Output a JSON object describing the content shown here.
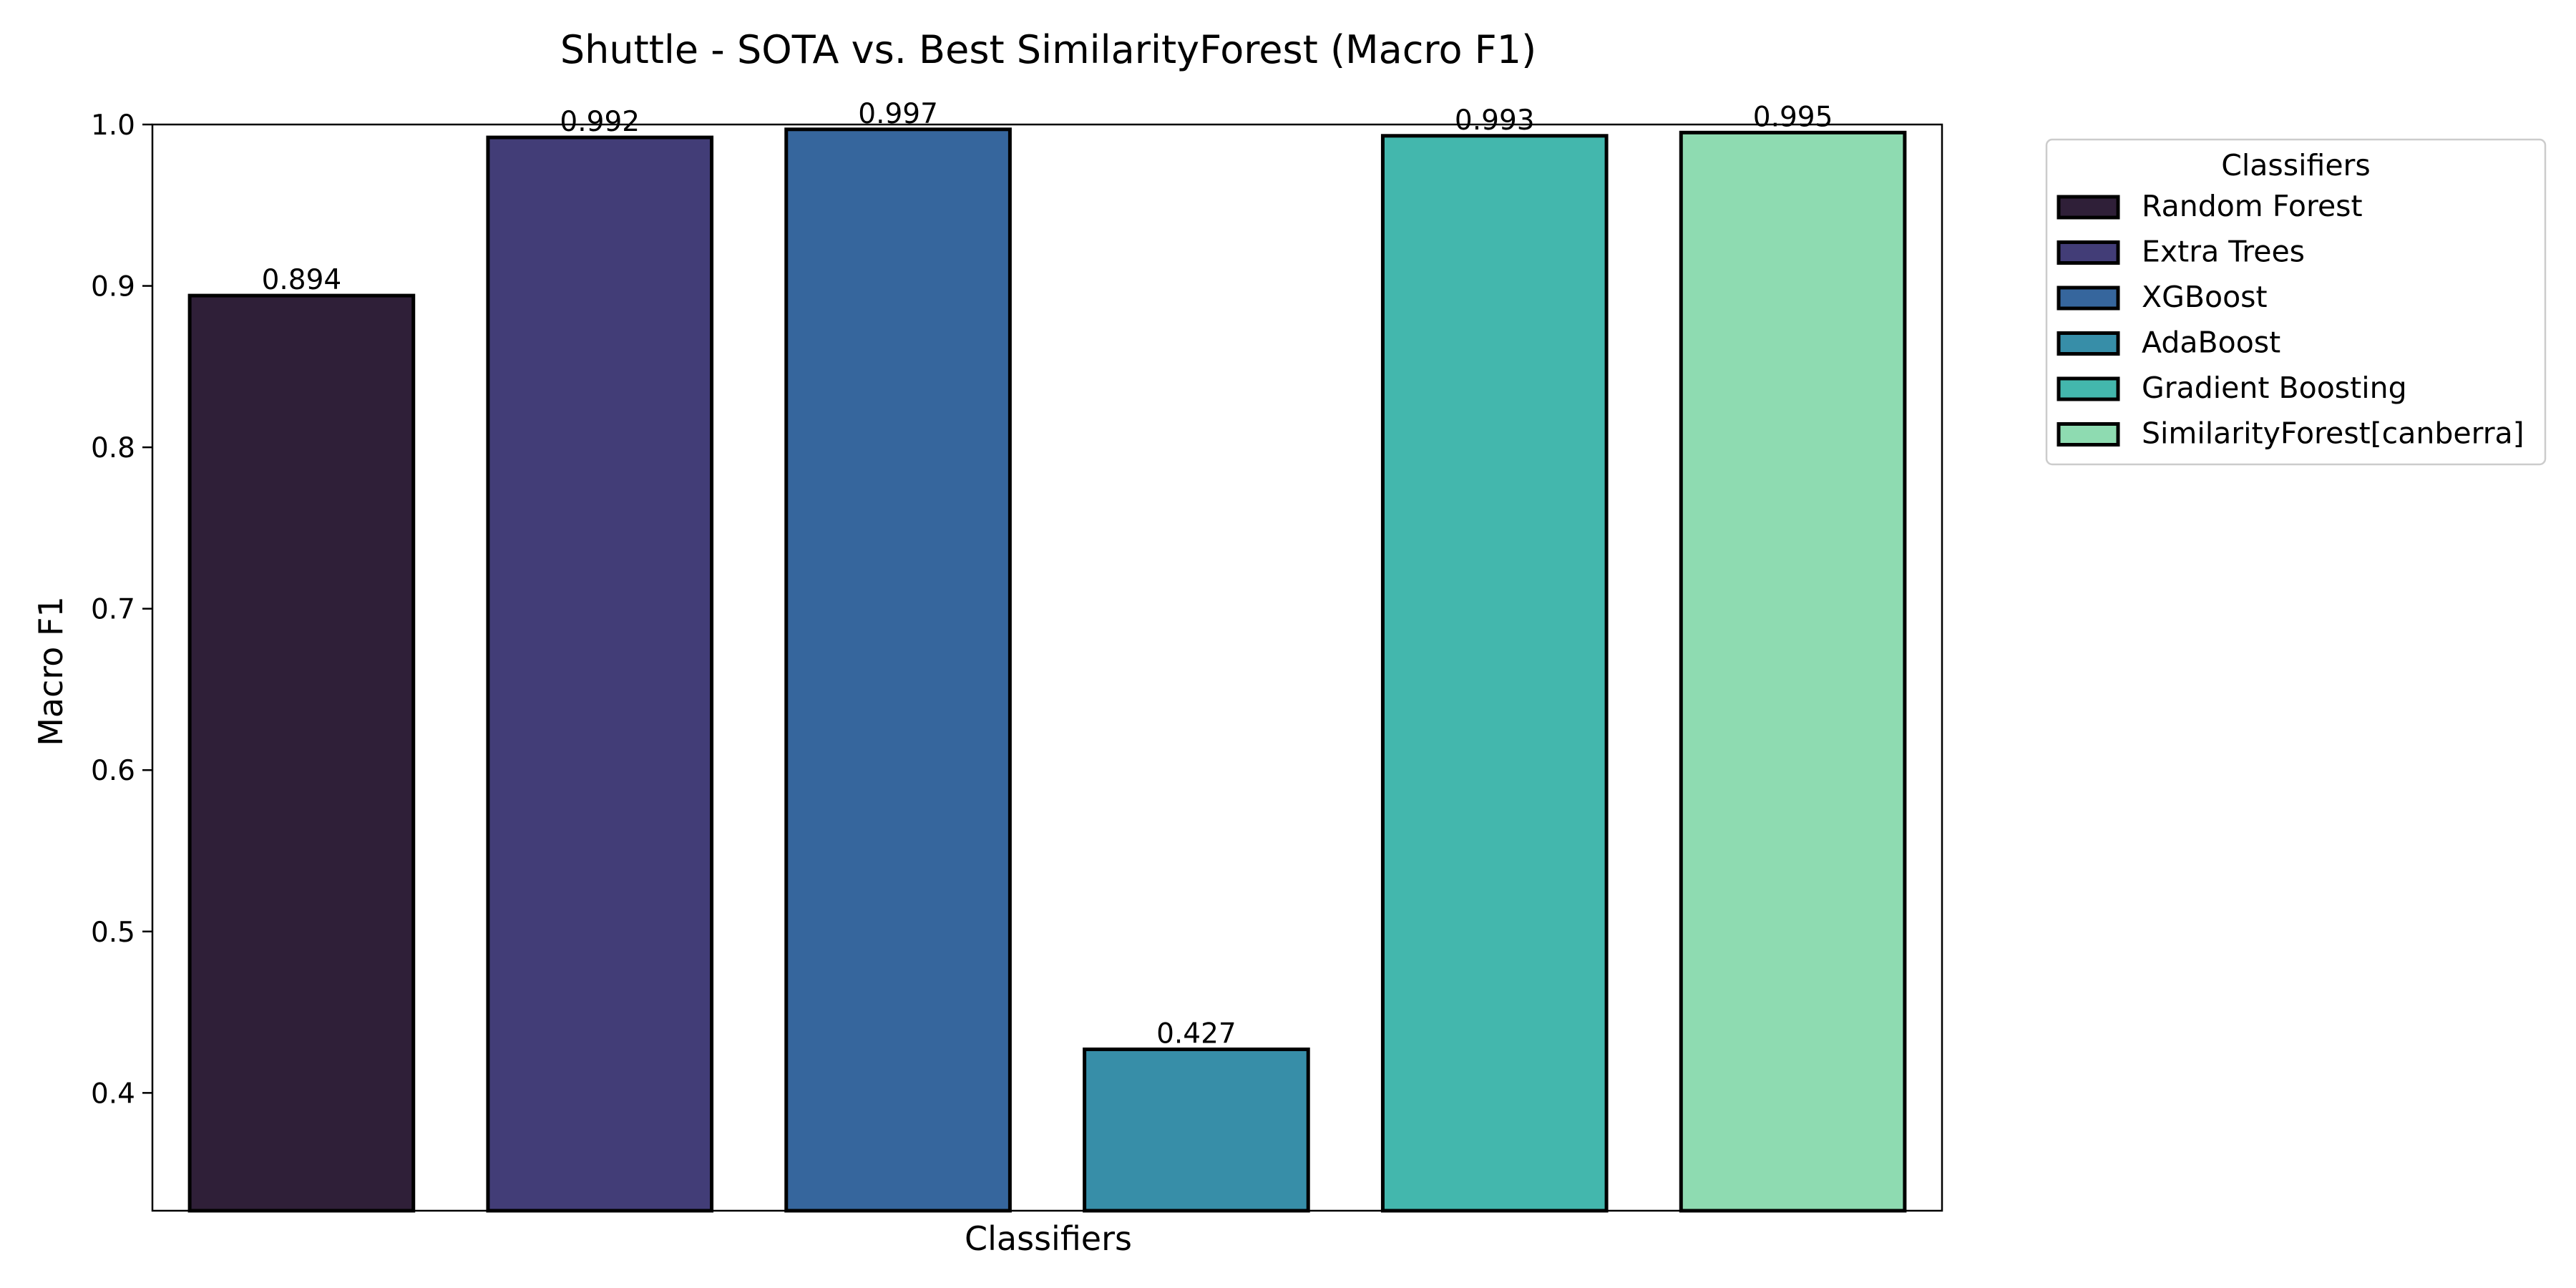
{
  "chart_data": {
    "type": "bar",
    "title": "Shuttle - SOTA vs. Best SimilarityForest (Macro F1)",
    "xlabel": "Classifiers",
    "ylabel": "Macro F1",
    "ylim": [
      0.327,
      1.0
    ],
    "yticks": [
      "0.4",
      "0.5",
      "0.6",
      "0.7",
      "0.8",
      "0.9",
      "1.0"
    ],
    "xticks_shown": false,
    "grid": false,
    "legend": {
      "title": "Classifiers",
      "placement": "outside-right-top"
    },
    "categories": [
      "Random Forest",
      "Extra Trees",
      "XGBoost",
      "AdaBoost",
      "Gradient Boosting",
      "SimilarityForest[canberra]"
    ],
    "values": [
      0.894,
      0.992,
      0.997,
      0.427,
      0.993,
      0.995
    ],
    "value_labels": [
      "0.894",
      "0.992",
      "0.997",
      "0.427",
      "0.993",
      "0.995"
    ],
    "colors": [
      "#2f1f38",
      "#423d77",
      "#36669d",
      "#378ea8",
      "#43b7ad",
      "#8edbb1"
    ]
  }
}
